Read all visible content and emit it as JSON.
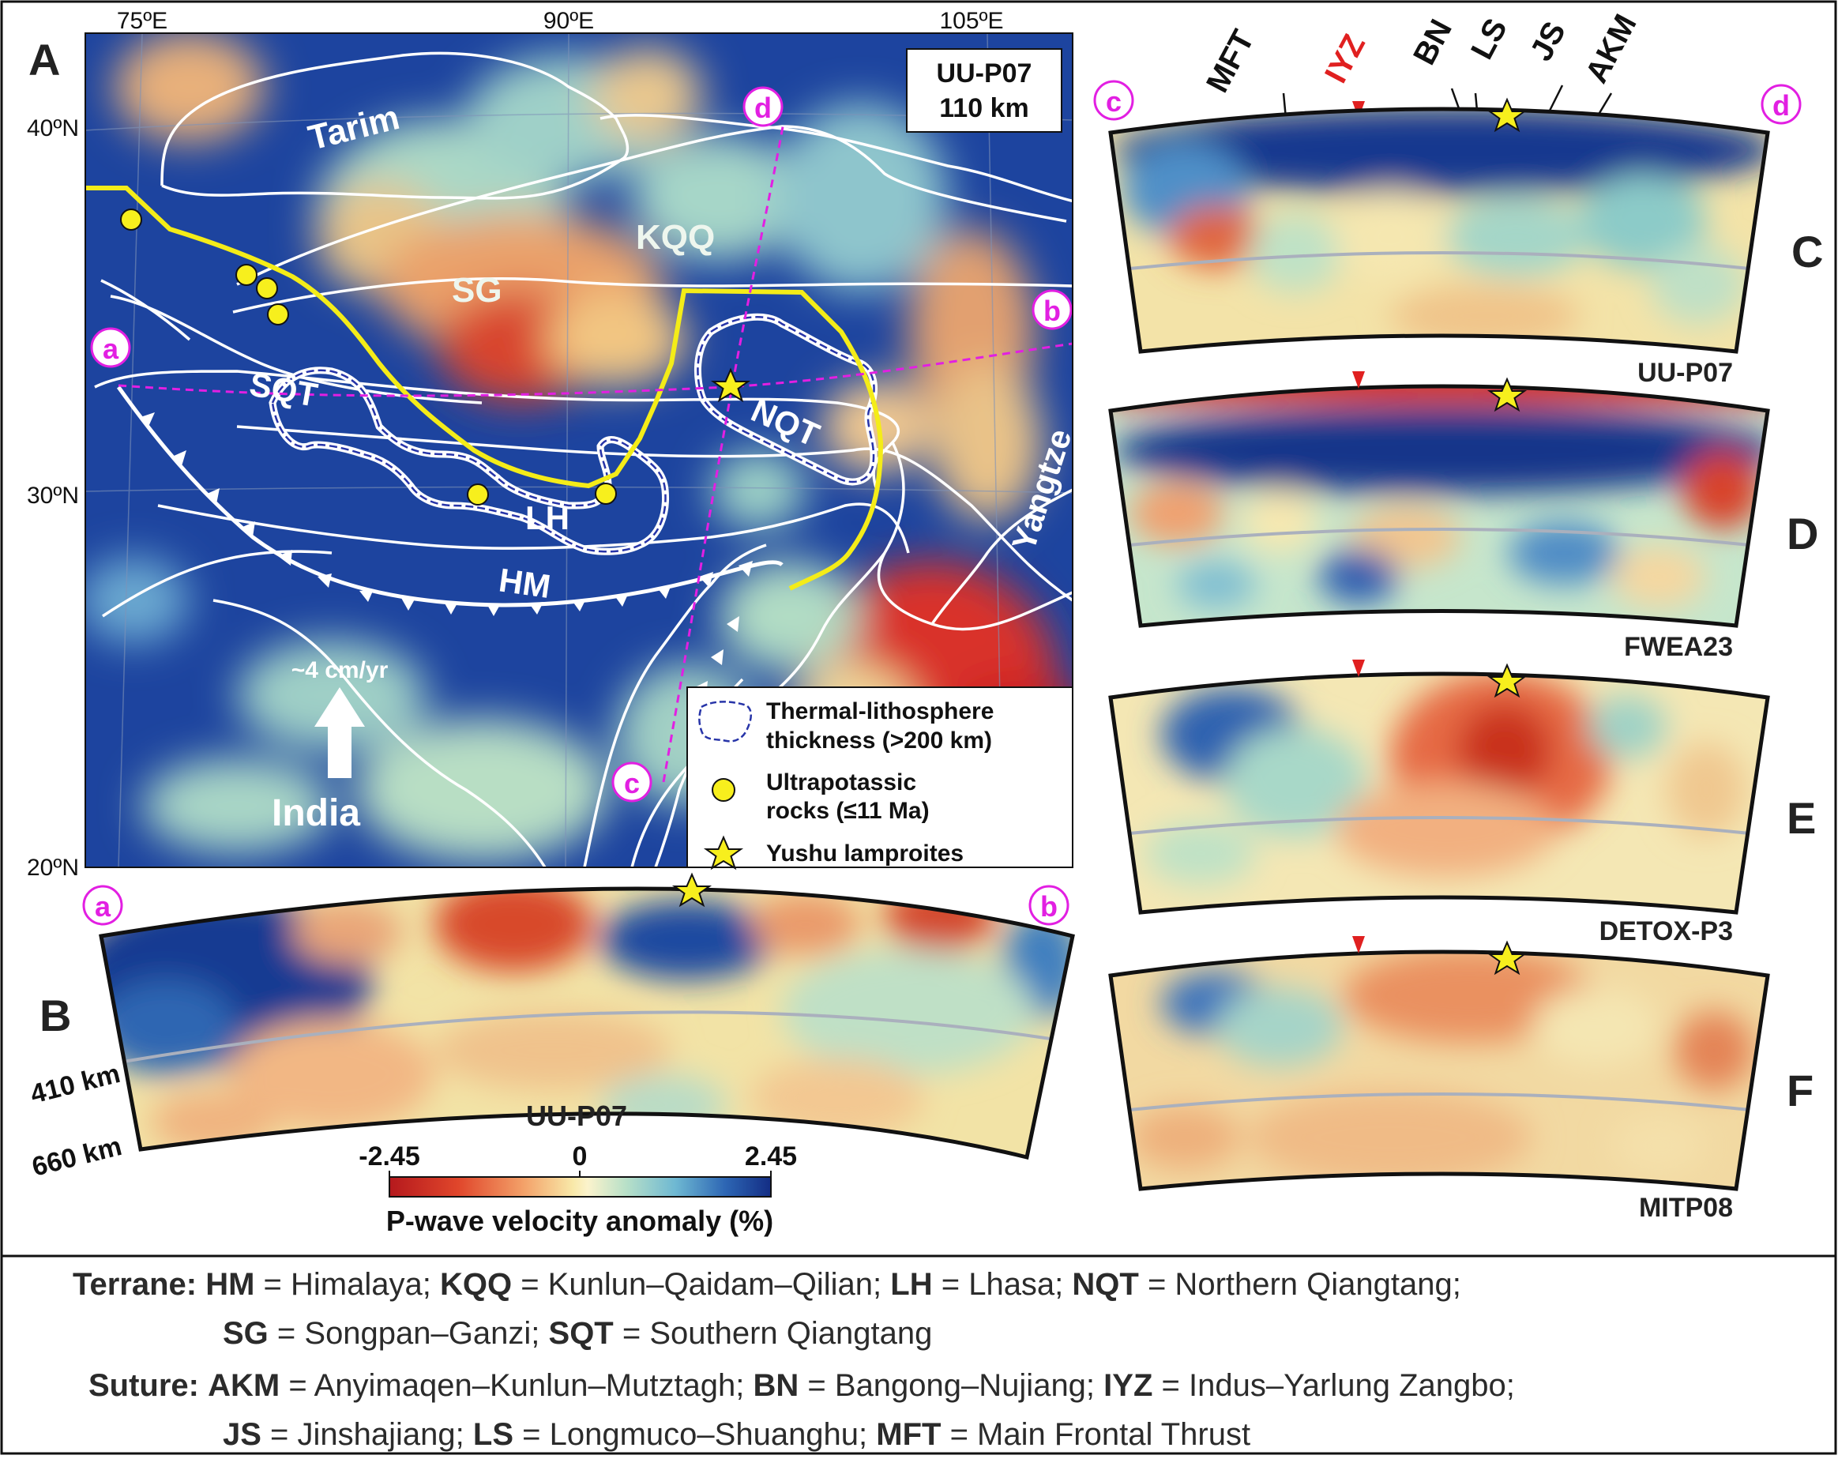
{
  "colors": {
    "strong_blue": "#1a3e9a",
    "mid_blue": "#3e7ec4",
    "cyan": "#8fd0c5",
    "pale": "#f3e8aa",
    "orange": "#f0a062",
    "red": "#d5351f",
    "magenta": "#e21fe2",
    "yellow": "#f7ef1d",
    "iyz_red": "#e02020"
  },
  "panel_a": {
    "letter": "A",
    "model_box": {
      "line1": "UU-P07",
      "line2": "110 km"
    },
    "lon_labels": [
      "75ºE",
      "90ºE",
      "105ºE"
    ],
    "lat_labels": [
      "40ºN",
      "30ºN",
      "20ºN"
    ],
    "terranes": [
      "Tarim",
      "KQQ",
      "SG",
      "SQT",
      "NQT",
      "LH",
      "HM",
      "Yangtze"
    ],
    "profile_points": [
      "a",
      "b",
      "c",
      "d"
    ],
    "plate_motion": {
      "rate": "~4 cm/yr",
      "plate": "India"
    },
    "legend": {
      "thermal": [
        "Thermal-lithosphere",
        "thickness (>200 km)"
      ],
      "ultrapotassic": [
        "Ultrapotassic",
        "rocks (≤11 Ma)"
      ],
      "lamproites": "Yushu lamproites"
    }
  },
  "panel_b": {
    "letter": "B",
    "model": "UU-P07",
    "ends": [
      "a",
      "b"
    ],
    "depth_labels": [
      "410 km",
      "660 km"
    ]
  },
  "colorbar": {
    "min_label": "-2.45",
    "mid_label": "0",
    "max_label": "2.45",
    "title": "P-wave velocity anomaly (%)",
    "range": [
      -2.45,
      2.45
    ]
  },
  "cross_sections": {
    "ends": [
      "c",
      "d"
    ],
    "suture_labels": [
      "MFT",
      "IYZ",
      "BN",
      "LS",
      "JS",
      "AKM"
    ],
    "panels": [
      {
        "letter": "C",
        "model": "UU-P07"
      },
      {
        "letter": "D",
        "model": "FWEA23"
      },
      {
        "letter": "E",
        "model": "DETOX-P3"
      },
      {
        "letter": "F",
        "model": "MITP08"
      }
    ]
  },
  "abbreviations": {
    "terrane_title": "Terrane:",
    "terrane_line1": [
      {
        "abbr": "HM",
        "name": " = Himalaya; "
      },
      {
        "abbr": "KQQ",
        "name": " = Kunlun–Qaidam–Qilian; "
      },
      {
        "abbr": "LH",
        "name": " = Lhasa; "
      },
      {
        "abbr": "NQT",
        "name": " = Northern Qiangtang;"
      }
    ],
    "terrane_line2": [
      {
        "abbr": "SG",
        "name": " = Songpan–Ganzi; "
      },
      {
        "abbr": "SQT",
        "name": " = Southern Qiangtang"
      }
    ],
    "suture_title": "Suture:",
    "suture_line1": [
      {
        "abbr": "AKM",
        "name": " = Anyimaqen–Kunlun–Mutztagh; "
      },
      {
        "abbr": "BN",
        "name": " = Bangong–Nujiang;  "
      },
      {
        "abbr": "IYZ",
        "name": " = Indus–Yarlung Zangbo;"
      }
    ],
    "suture_line2": [
      {
        "abbr": "JS",
        "name": " = Jinshajiang; "
      },
      {
        "abbr": "LS",
        "name": " = Longmuco–Shuanghu; "
      },
      {
        "abbr": "MFT",
        "name": " = Main Frontal Thrust"
      }
    ]
  }
}
